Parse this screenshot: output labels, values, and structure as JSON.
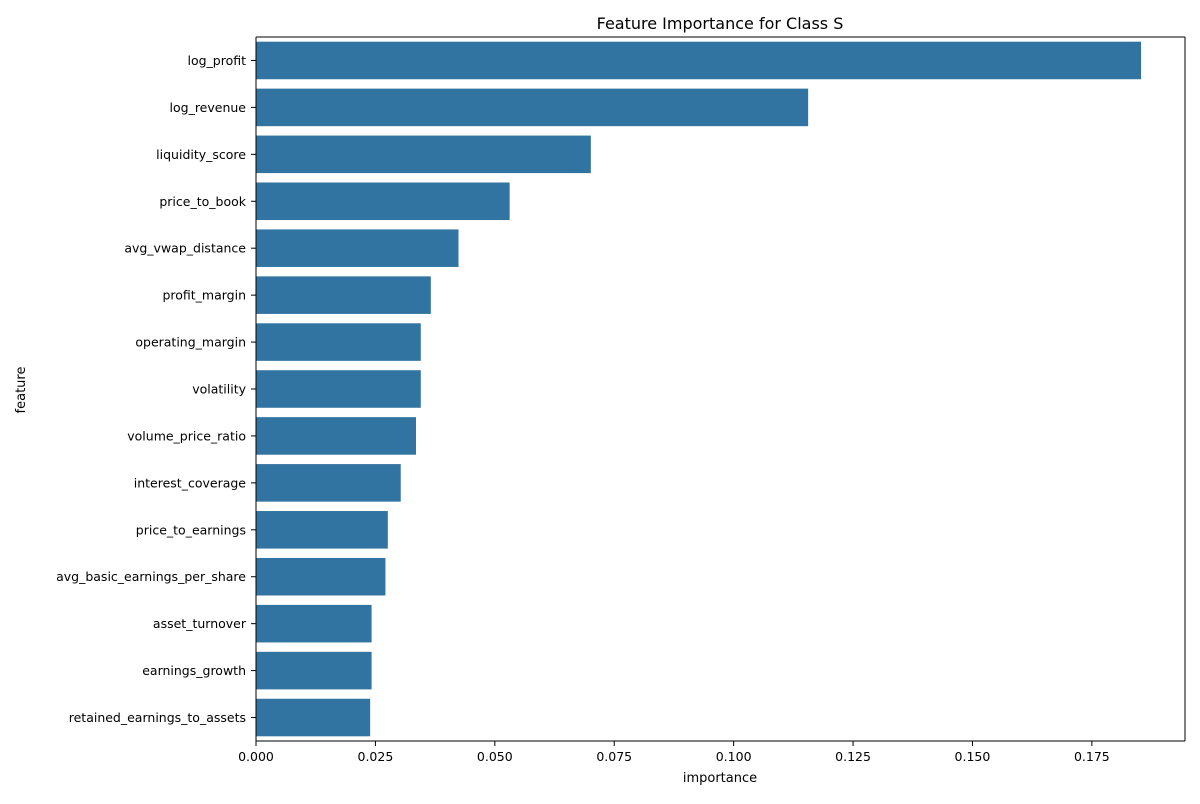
{
  "chart_data": {
    "type": "bar",
    "orientation": "horizontal",
    "title": "Feature Importance for Class S",
    "xlabel": "importance",
    "ylabel": "feature",
    "xlim": [
      0,
      0.1945
    ],
    "xticks": [
      "0.000",
      "0.025",
      "0.050",
      "0.075",
      "0.100",
      "0.125",
      "0.150",
      "0.175"
    ],
    "grid": false,
    "legend": "none",
    "bar_color": "#3274a1",
    "categories": [
      "log_profit",
      "log_revenue",
      "liquidity_score",
      "price_to_book",
      "avg_vwap_distance",
      "profit_margin",
      "operating_margin",
      "volatility",
      "volume_price_ratio",
      "interest_coverage",
      "price_to_earnings",
      "avg_basic_earnings_per_share",
      "asset_turnover",
      "earnings_growth",
      "retained_earnings_to_assets"
    ],
    "values": [
      0.1853,
      0.1156,
      0.0701,
      0.0531,
      0.0424,
      0.0366,
      0.0345,
      0.0345,
      0.0335,
      0.0303,
      0.0276,
      0.0271,
      0.0242,
      0.0242,
      0.0239
    ]
  }
}
